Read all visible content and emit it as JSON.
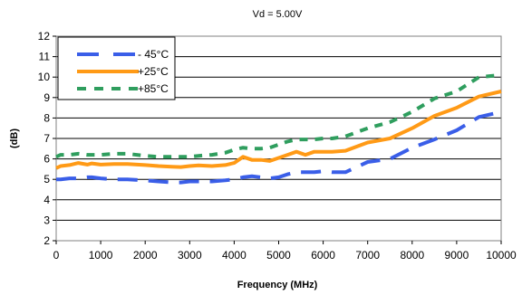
{
  "chart_data": {
    "type": "line",
    "title": "Vd = 5.00V",
    "xlabel": "Frequency (MHz)",
    "ylabel": "(dB)",
    "xlim": [
      0,
      10000
    ],
    "ylim": [
      2,
      12
    ],
    "xticks": [
      0,
      1000,
      2000,
      3000,
      4000,
      5000,
      6000,
      7000,
      8000,
      9000,
      10000
    ],
    "yticks": [
      2,
      3,
      4,
      5,
      6,
      7,
      8,
      9,
      10,
      11,
      12
    ],
    "grid": true,
    "legend_position": "top-left",
    "series": [
      {
        "name": "- 45°C",
        "color": "#3a5ee8",
        "style": "long-dash",
        "x": [
          0,
          100,
          300,
          500,
          700,
          800,
          1000,
          1300,
          1600,
          2000,
          2300,
          2600,
          2800,
          3000,
          3200,
          3500,
          3800,
          4000,
          4200,
          4400,
          4600,
          4800,
          5000,
          5200,
          5400,
          5600,
          5800,
          6000,
          6200,
          6500,
          7000,
          7500,
          8000,
          8500,
          9000,
          9500,
          10000
        ],
        "y": [
          5.0,
          5.0,
          5.05,
          5.05,
          5.1,
          5.1,
          5.05,
          5.0,
          5.0,
          4.95,
          4.9,
          4.85,
          4.85,
          4.9,
          4.9,
          4.9,
          4.95,
          5.0,
          5.1,
          5.15,
          5.1,
          5.05,
          5.1,
          5.25,
          5.35,
          5.35,
          5.35,
          5.4,
          5.35,
          5.35,
          5.85,
          6.0,
          6.55,
          6.95,
          7.4,
          8.05,
          8.3
        ]
      },
      {
        "name": "+25°C",
        "color": "#ff9a16",
        "style": "solid",
        "x": [
          0,
          100,
          300,
          500,
          700,
          800,
          1000,
          1300,
          1600,
          2000,
          2300,
          2600,
          2800,
          3000,
          3200,
          3500,
          3800,
          4000,
          4200,
          4400,
          4600,
          4800,
          5000,
          5200,
          5400,
          5600,
          5800,
          6000,
          6200,
          6500,
          7000,
          7500,
          8000,
          8500,
          9000,
          9500,
          10000
        ],
        "y": [
          5.55,
          5.65,
          5.7,
          5.8,
          5.72,
          5.78,
          5.72,
          5.75,
          5.75,
          5.7,
          5.65,
          5.62,
          5.6,
          5.65,
          5.68,
          5.65,
          5.7,
          5.8,
          6.1,
          5.95,
          5.95,
          5.9,
          6.05,
          6.2,
          6.35,
          6.2,
          6.35,
          6.35,
          6.35,
          6.4,
          6.8,
          7.0,
          7.5,
          8.1,
          8.5,
          9.05,
          9.3
        ]
      },
      {
        "name": "+85°C",
        "color": "#2f9e5e",
        "style": "dash",
        "x": [
          0,
          100,
          300,
          500,
          700,
          800,
          1000,
          1300,
          1600,
          2000,
          2300,
          2600,
          2800,
          3000,
          3200,
          3500,
          3800,
          4000,
          4200,
          4400,
          4600,
          4800,
          5000,
          5200,
          5400,
          5600,
          5800,
          6000,
          6200,
          6500,
          7000,
          7500,
          8000,
          8500,
          9000,
          9500,
          10000
        ],
        "y": [
          6.1,
          6.2,
          6.2,
          6.25,
          6.2,
          6.2,
          6.2,
          6.25,
          6.25,
          6.15,
          6.1,
          6.1,
          6.1,
          6.1,
          6.15,
          6.2,
          6.3,
          6.45,
          6.55,
          6.5,
          6.5,
          6.55,
          6.7,
          6.85,
          6.95,
          6.95,
          6.95,
          7.0,
          7.0,
          7.1,
          7.5,
          7.8,
          8.3,
          8.95,
          9.3,
          10.0,
          10.1
        ]
      }
    ]
  }
}
